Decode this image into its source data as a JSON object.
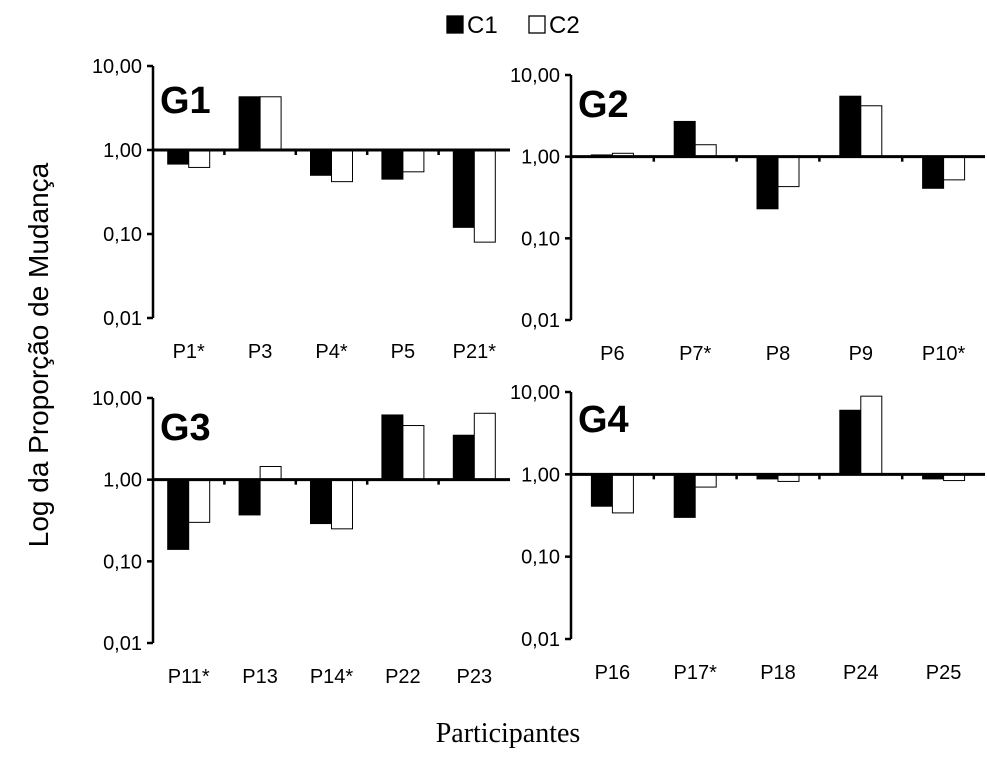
{
  "chart_data": {
    "type": "bar",
    "ylabel": "Log da Proporção de Mudança",
    "xlabel": "Participantes",
    "yscale": "log",
    "ylim": [
      0.01,
      10
    ],
    "yticks": [
      "0,01",
      "0,10",
      "1,00",
      "10,00"
    ],
    "baseline": 1,
    "legend": {
      "placement": "top-center",
      "entries": [
        {
          "name": "C1",
          "color": "#000000"
        },
        {
          "name": "C2",
          "color": "#ffffff"
        }
      ]
    },
    "panels": [
      {
        "title": "G1",
        "categories": [
          "P1*",
          "P3",
          "P4*",
          "P5",
          "P21*"
        ],
        "series": [
          {
            "name": "C1",
            "values": [
              0.68,
              4.3,
              0.5,
              0.45,
              0.12
            ]
          },
          {
            "name": "C2",
            "values": [
              0.62,
              4.3,
              0.42,
              0.55,
              0.08
            ]
          }
        ]
      },
      {
        "title": "G2",
        "categories": [
          "P6",
          "P7*",
          "P8",
          "P9",
          "P10*"
        ],
        "series": [
          {
            "name": "C1",
            "values": [
              1.05,
              2.7,
              0.23,
              5.5,
              0.41
            ]
          },
          {
            "name": "C2",
            "values": [
              1.1,
              1.4,
              0.43,
              4.2,
              0.52
            ]
          }
        ]
      },
      {
        "title": "G3",
        "categories": [
          "P11*",
          "P13",
          "P14*",
          "P22",
          "P23"
        ],
        "series": [
          {
            "name": "C1",
            "values": [
              0.14,
              0.37,
              0.29,
              6.2,
              3.5
            ]
          },
          {
            "name": "C2",
            "values": [
              0.3,
              1.45,
              0.25,
              4.6,
              6.5
            ]
          }
        ]
      },
      {
        "title": "G4",
        "categories": [
          "P16",
          "P17*",
          "P18",
          "P24",
          "P25"
        ],
        "series": [
          {
            "name": "C1",
            "values": [
              0.41,
              0.3,
              0.88,
              6.0,
              0.88
            ]
          },
          {
            "name": "C2",
            "values": [
              0.34,
              0.7,
              0.82,
              8.9,
              0.84
            ]
          }
        ]
      }
    ]
  }
}
